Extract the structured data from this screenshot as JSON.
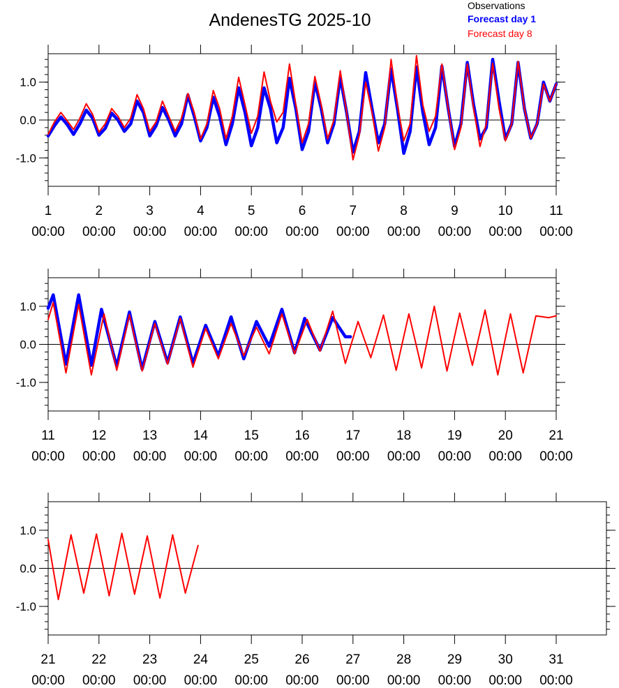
{
  "title": "AndenesTG 2025-10",
  "legend": {
    "observations": "Observations",
    "forecast_day1": "Forecast day 1",
    "forecast_day8": "Forecast day 8"
  },
  "colors": {
    "observations": "#000000",
    "forecast_day1": "#0000ff",
    "forecast_day8": "#ff0000"
  },
  "chart_data": [
    {
      "type": "line",
      "x_range_days": [
        1,
        11
      ],
      "ylim": [
        -1.75,
        1.75
      ],
      "y_ticks": [
        -1.0,
        0.0,
        1.0
      ],
      "y_tick_labels": [
        "-1.0",
        "0.0",
        "1.0"
      ],
      "x_tick_labels": [
        {
          "day": "1",
          "time": "00:00"
        },
        {
          "day": "2",
          "time": "00:00"
        },
        {
          "day": "3",
          "time": "00:00"
        },
        {
          "day": "4",
          "time": "00:00"
        },
        {
          "day": "5",
          "time": "00:00"
        },
        {
          "day": "6",
          "time": "00:00"
        },
        {
          "day": "7",
          "time": "00:00"
        },
        {
          "day": "8",
          "time": "00:00"
        },
        {
          "day": "9",
          "time": "00:00"
        },
        {
          "day": "10",
          "time": "00:00"
        },
        {
          "day": "11",
          "time": "00:00"
        }
      ],
      "series": [
        {
          "name": "Forecast day 1",
          "x": [
            1.0,
            1.125,
            1.25,
            1.375,
            1.5,
            1.625,
            1.75,
            1.875,
            2.0,
            2.125,
            2.25,
            2.375,
            2.5,
            2.625,
            2.75,
            2.875,
            3.0,
            3.125,
            3.25,
            3.375,
            3.5,
            3.625,
            3.75,
            3.875,
            4.0,
            4.125,
            4.25,
            4.375,
            4.5,
            4.625,
            4.75,
            4.875,
            5.0,
            5.125,
            5.25,
            5.375,
            5.5,
            5.625,
            5.75,
            5.875,
            6.0,
            6.125,
            6.25,
            6.375,
            6.5,
            6.625,
            6.75,
            6.875,
            7.0,
            7.125,
            7.25,
            7.375,
            7.5,
            7.625,
            7.75,
            7.875,
            8.0,
            8.125,
            8.25,
            8.375,
            8.5,
            8.625,
            8.75,
            8.875,
            9.0,
            9.125,
            9.25,
            9.375,
            9.5,
            9.625,
            9.75,
            9.875,
            10.0,
            10.125,
            10.25,
            10.375,
            10.5,
            10.625,
            10.75,
            10.875,
            11.0
          ],
          "y": [
            -0.42,
            -0.15,
            0.08,
            -0.12,
            -0.38,
            -0.1,
            0.26,
            0.05,
            -0.4,
            -0.22,
            0.18,
            0.0,
            -0.3,
            -0.1,
            0.5,
            0.2,
            -0.42,
            -0.15,
            0.33,
            0.0,
            -0.42,
            -0.1,
            0.66,
            0.1,
            -0.55,
            -0.2,
            0.6,
            0.1,
            -0.65,
            -0.1,
            0.85,
            0.2,
            -0.68,
            -0.2,
            0.85,
            0.3,
            -0.6,
            -0.2,
            1.1,
            0.3,
            -0.78,
            -0.3,
            1.0,
            0.3,
            -0.6,
            -0.1,
            1.13,
            0.2,
            -0.85,
            -0.3,
            1.25,
            0.3,
            -0.6,
            -0.1,
            1.35,
            0.3,
            -0.88,
            -0.3,
            1.4,
            0.2,
            -0.65,
            -0.2,
            1.42,
            0.3,
            -0.7,
            -0.1,
            1.52,
            0.4,
            -0.5,
            -0.2,
            1.6,
            0.5,
            -0.5,
            -0.1,
            1.52,
            0.3,
            -0.48,
            -0.1,
            1.0,
            0.5,
            0.95
          ]
        },
        {
          "name": "Forecast day 8",
          "x": [
            1.0,
            1.125,
            1.25,
            1.375,
            1.5,
            1.625,
            1.75,
            1.875,
            2.0,
            2.125,
            2.25,
            2.375,
            2.5,
            2.625,
            2.75,
            2.875,
            3.0,
            3.125,
            3.25,
            3.375,
            3.5,
            3.625,
            3.75,
            3.875,
            4.0,
            4.125,
            4.25,
            4.375,
            4.5,
            4.625,
            4.75,
            4.875,
            5.0,
            5.125,
            5.25,
            5.375,
            5.5,
            5.625,
            5.75,
            5.875,
            6.0,
            6.125,
            6.25,
            6.375,
            6.5,
            6.625,
            6.75,
            6.875,
            7.0,
            7.125,
            7.25,
            7.375,
            7.5,
            7.625,
            7.75,
            7.875,
            8.0,
            8.125,
            8.25,
            8.375,
            8.5,
            8.625,
            8.75,
            8.875,
            9.0,
            9.125,
            9.25,
            9.375,
            9.5,
            9.625,
            9.75,
            9.875,
            10.0,
            10.125,
            10.25,
            10.375,
            10.5,
            10.625,
            10.75,
            10.875,
            11.0
          ],
          "y": [
            -0.38,
            -0.05,
            0.2,
            -0.02,
            -0.25,
            0.05,
            0.43,
            0.15,
            -0.32,
            -0.1,
            0.3,
            0.1,
            -0.2,
            0.05,
            0.67,
            0.3,
            -0.3,
            -0.05,
            0.5,
            0.1,
            -0.3,
            0.05,
            0.7,
            0.2,
            -0.5,
            -0.1,
            0.78,
            0.3,
            -0.5,
            0.1,
            1.13,
            0.4,
            -0.35,
            0.1,
            1.27,
            0.5,
            -0.05,
            0.2,
            1.48,
            0.4,
            -0.6,
            -0.1,
            1.15,
            0.4,
            -0.5,
            0.0,
            1.3,
            0.2,
            -1.05,
            -0.4,
            1.0,
            0.2,
            -0.82,
            -0.2,
            1.6,
            0.4,
            -0.55,
            -0.1,
            1.7,
            0.4,
            -0.3,
            0.1,
            1.48,
            0.3,
            -0.78,
            -0.2,
            1.48,
            0.3,
            -0.7,
            -0.1,
            1.5,
            0.3,
            -0.55,
            -0.1,
            1.55,
            0.3,
            -0.48,
            -0.1,
            0.95,
            0.5,
            0.95
          ]
        }
      ]
    },
    {
      "type": "line",
      "x_range_days": [
        11,
        21
      ],
      "ylim": [
        -1.75,
        1.75
      ],
      "y_ticks": [
        -1.0,
        0.0,
        1.0
      ],
      "y_tick_labels": [
        "-1.0",
        "0.0",
        "1.0"
      ],
      "x_tick_labels": [
        {
          "day": "11",
          "time": "00:00"
        },
        {
          "day": "12",
          "time": "00:00"
        },
        {
          "day": "13",
          "time": "00:00"
        },
        {
          "day": "14",
          "time": "00:00"
        },
        {
          "day": "15",
          "time": "00:00"
        },
        {
          "day": "16",
          "time": "00:00"
        },
        {
          "day": "17",
          "time": "00:00"
        },
        {
          "day": "18",
          "time": "00:00"
        },
        {
          "day": "19",
          "time": "00:00"
        },
        {
          "day": "20",
          "time": "00:00"
        },
        {
          "day": "21",
          "time": "00:00"
        }
      ],
      "series": [
        {
          "name": "Forecast day 1",
          "x": [
            11.0,
            11.1,
            11.35,
            11.6,
            11.85,
            12.05,
            12.35,
            12.6,
            12.85,
            13.1,
            13.35,
            13.6,
            13.85,
            14.1,
            14.35,
            14.6,
            14.85,
            15.1,
            15.35,
            15.6,
            15.85,
            16.05,
            16.35,
            16.6,
            16.85,
            16.95
          ],
          "y": [
            0.95,
            1.3,
            -0.52,
            1.3,
            -0.55,
            0.92,
            -0.58,
            0.85,
            -0.65,
            0.6,
            -0.48,
            0.72,
            -0.5,
            0.5,
            -0.3,
            0.72,
            -0.38,
            0.6,
            -0.05,
            0.92,
            -0.22,
            0.68,
            -0.15,
            0.7,
            0.2,
            0.2
          ]
        },
        {
          "name": "Forecast day 8",
          "x": [
            11.0,
            11.1,
            11.35,
            11.6,
            11.85,
            12.1,
            12.35,
            12.6,
            12.85,
            13.1,
            13.35,
            13.6,
            13.85,
            14.1,
            14.35,
            14.6,
            14.85,
            15.1,
            15.35,
            15.6,
            15.85,
            16.1,
            16.35,
            16.6,
            16.85,
            17.1,
            17.35,
            17.6,
            17.85,
            18.1,
            18.35,
            18.6,
            18.85,
            19.1,
            19.35,
            19.6,
            19.85,
            20.1,
            20.35,
            20.6,
            20.85,
            21.0
          ],
          "y": [
            0.65,
            1.1,
            -0.75,
            1.05,
            -0.8,
            0.8,
            -0.68,
            0.78,
            -0.7,
            0.55,
            -0.52,
            0.68,
            -0.6,
            0.42,
            -0.38,
            0.55,
            -0.3,
            0.45,
            -0.25,
            0.8,
            -0.25,
            0.65,
            -0.18,
            0.87,
            -0.5,
            0.6,
            -0.35,
            0.77,
            -0.68,
            0.8,
            -0.62,
            1.0,
            -0.7,
            0.82,
            -0.55,
            0.9,
            -0.8,
            0.8,
            -0.75,
            0.75,
            0.7,
            0.75
          ]
        }
      ]
    },
    {
      "type": "line",
      "x_range_days": [
        21,
        31
      ],
      "ylim": [
        -1.75,
        1.75
      ],
      "y_ticks": [
        -1.0,
        0.0,
        1.0
      ],
      "y_tick_labels": [
        "-1.0",
        "0.0",
        "1.0"
      ],
      "x_tick_labels": [
        {
          "day": "21",
          "time": "00:00"
        },
        {
          "day": "22",
          "time": "00:00"
        },
        {
          "day": "23",
          "time": "00:00"
        },
        {
          "day": "24",
          "time": "00:00"
        },
        {
          "day": "25",
          "time": "00:00"
        },
        {
          "day": "26",
          "time": "00:00"
        },
        {
          "day": "27",
          "time": "00:00"
        },
        {
          "day": "28",
          "time": "00:00"
        },
        {
          "day": "29",
          "time": "00:00"
        },
        {
          "day": "30",
          "time": "00:00"
        },
        {
          "day": "31",
          "time": "00:00"
        }
      ],
      "series": [
        {
          "name": "Forecast day 8",
          "x": [
            21.0,
            21.2,
            21.45,
            21.7,
            21.95,
            22.2,
            22.45,
            22.7,
            22.95,
            23.2,
            23.45,
            23.7,
            23.95
          ],
          "y": [
            0.75,
            -0.82,
            0.88,
            -0.65,
            0.9,
            -0.72,
            0.92,
            -0.68,
            0.85,
            -0.78,
            0.88,
            -0.65,
            0.6
          ]
        }
      ]
    }
  ]
}
